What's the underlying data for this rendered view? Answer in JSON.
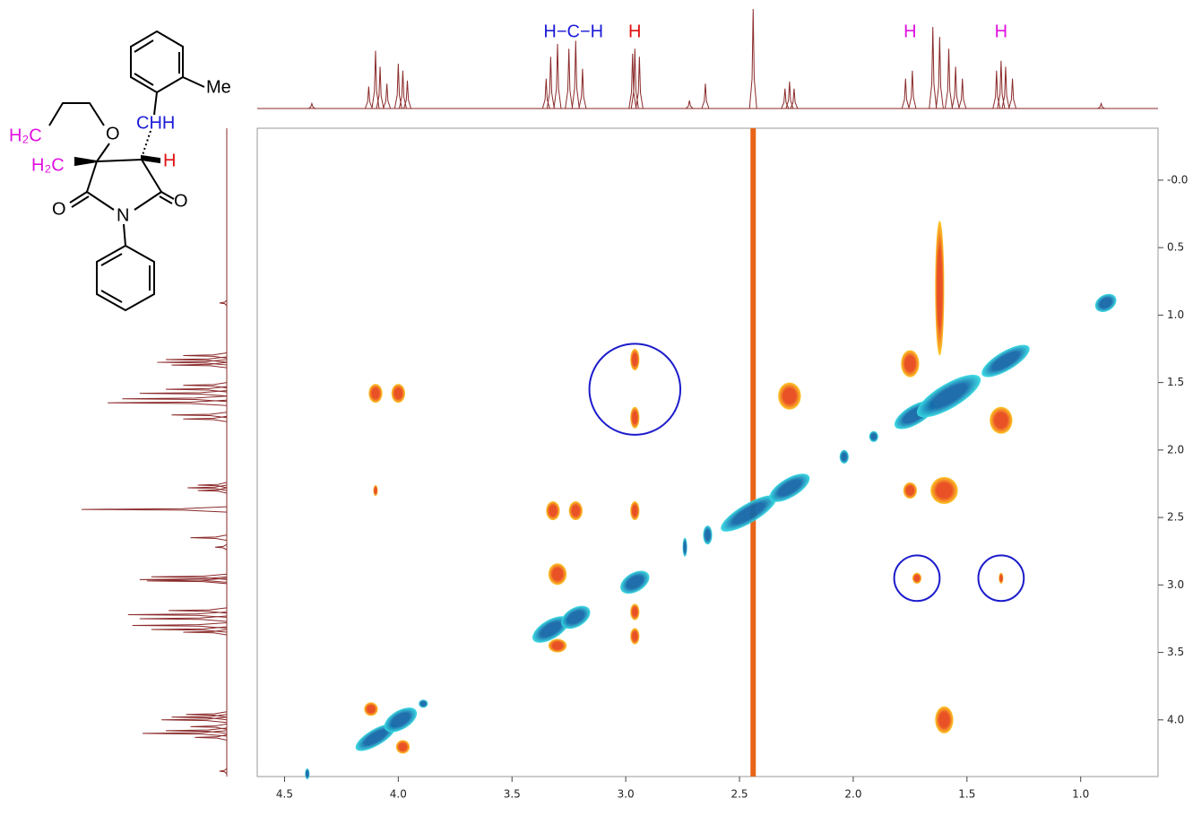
{
  "chart_data": {
    "type": "nmr2d",
    "xlim": [
      4.62,
      0.66
    ],
    "ylim": [
      -0.385,
      4.42
    ],
    "xticks": [
      4.5,
      {
        "value": 4,
        "label": "4.0"
      },
      3.5,
      {
        "value": 3,
        "label": "3.0"
      },
      2.5,
      {
        "value": 2,
        "label": "2.0"
      },
      1.5,
      {
        "value": 1,
        "label": "1.0"
      }
    ],
    "yticks": [
      {
        "value": 0,
        "label": "-0.0"
      },
      0.5,
      {
        "value": 1,
        "label": "1.0"
      },
      1.5,
      {
        "value": 2,
        "label": "2.0"
      },
      2.5,
      {
        "value": 3,
        "label": "3.0"
      },
      3.5,
      {
        "value": 4,
        "label": "4.0"
      }
    ],
    "colors": {
      "pos": [
        "#35dbe3",
        "#1467a8"
      ],
      "neg": [
        "#ffc61c",
        "#e8481a"
      ],
      "projection": "#8b2a2a",
      "highlight": "#1c1ccc"
    },
    "projection_lim": [
      0,
      100
    ],
    "projection": [
      {
        "ppm": 4.38,
        "h": 5
      },
      {
        "ppm": 4.13,
        "h": 22
      },
      {
        "ppm": 4.1,
        "h": 58
      },
      {
        "ppm": 4.08,
        "h": 42
      },
      {
        "ppm": 4.05,
        "h": 25
      },
      {
        "ppm": 4.0,
        "h": 45
      },
      {
        "ppm": 3.98,
        "h": 38
      },
      {
        "ppm": 3.96,
        "h": 28
      },
      {
        "ppm": 3.35,
        "h": 30
      },
      {
        "ppm": 3.33,
        "h": 52
      },
      {
        "ppm": 3.3,
        "h": 65
      },
      {
        "ppm": 3.25,
        "h": 60
      },
      {
        "ppm": 3.22,
        "h": 68
      },
      {
        "ppm": 3.19,
        "h": 40
      },
      {
        "ppm": 2.97,
        "h": 55
      },
      {
        "ppm": 2.96,
        "h": 60
      },
      {
        "ppm": 2.94,
        "h": 52
      },
      {
        "ppm": 2.72,
        "h": 8
      },
      {
        "ppm": 2.65,
        "h": 25
      },
      {
        "ppm": 2.44,
        "h": 100
      },
      {
        "ppm": 2.3,
        "h": 20
      },
      {
        "ppm": 2.28,
        "h": 27
      },
      {
        "ppm": 2.26,
        "h": 20
      },
      {
        "ppm": 1.77,
        "h": 30
      },
      {
        "ppm": 1.74,
        "h": 38
      },
      {
        "ppm": 1.65,
        "h": 82
      },
      {
        "ppm": 1.62,
        "h": 72
      },
      {
        "ppm": 1.58,
        "h": 60
      },
      {
        "ppm": 1.55,
        "h": 42
      },
      {
        "ppm": 1.52,
        "h": 30
      },
      {
        "ppm": 1.37,
        "h": 38
      },
      {
        "ppm": 1.35,
        "h": 48
      },
      {
        "ppm": 1.33,
        "h": 42
      },
      {
        "ppm": 1.3,
        "h": 30
      },
      {
        "ppm": 0.91,
        "h": 5
      }
    ],
    "artifact": {
      "x": 2.44,
      "color": "#e8641a"
    },
    "peaks": [
      {
        "x": 4.4,
        "y": 4.4,
        "wx": 0.01,
        "wy": 0.04,
        "phase": "pos"
      },
      {
        "x": 4.1,
        "y": 4.13,
        "wx": 0.1,
        "wy": 0.06,
        "phase": "pos"
      },
      {
        "x": 3.99,
        "y": 4.0,
        "wx": 0.08,
        "wy": 0.07,
        "phase": "pos"
      },
      {
        "x": 3.89,
        "y": 3.88,
        "wx": 0.02,
        "wy": 0.03,
        "phase": "pos"
      },
      {
        "x": 3.33,
        "y": 3.33,
        "wx": 0.09,
        "wy": 0.07,
        "phase": "pos"
      },
      {
        "x": 3.22,
        "y": 3.24,
        "wx": 0.07,
        "wy": 0.07,
        "phase": "pos"
      },
      {
        "x": 2.96,
        "y": 2.98,
        "wx": 0.07,
        "wy": 0.07,
        "phase": "pos"
      },
      {
        "x": 2.74,
        "y": 2.72,
        "wx": 0.01,
        "wy": 0.07,
        "phase": "pos"
      },
      {
        "x": 2.64,
        "y": 2.63,
        "wx": 0.02,
        "wy": 0.07,
        "phase": "pos"
      },
      {
        "x": 2.46,
        "y": 2.47,
        "wx": 0.14,
        "wy": 0.07,
        "phase": "pos"
      },
      {
        "x": 2.28,
        "y": 2.28,
        "wx": 0.1,
        "wy": 0.07,
        "phase": "pos"
      },
      {
        "x": 2.04,
        "y": 2.05,
        "wx": 0.02,
        "wy": 0.05,
        "phase": "pos"
      },
      {
        "x": 1.91,
        "y": 1.9,
        "wx": 0.02,
        "wy": 0.04,
        "phase": "pos"
      },
      {
        "x": 1.73,
        "y": 1.74,
        "wx": 0.1,
        "wy": 0.07,
        "phase": "pos"
      },
      {
        "x": 1.58,
        "y": 1.6,
        "wx": 0.16,
        "wy": 0.09,
        "phase": "pos"
      },
      {
        "x": 1.33,
        "y": 1.34,
        "wx": 0.12,
        "wy": 0.07,
        "phase": "pos"
      },
      {
        "x": 0.89,
        "y": 0.91,
        "wx": 0.05,
        "wy": 0.06,
        "phase": "pos"
      },
      {
        "x": 4.1,
        "y": 1.58,
        "wx": 0.03,
        "wy": 0.07,
        "phase": "neg"
      },
      {
        "x": 4.0,
        "y": 1.58,
        "wx": 0.03,
        "wy": 0.07,
        "phase": "neg"
      },
      {
        "x": 4.1,
        "y": 2.3,
        "wx": 0.01,
        "wy": 0.04,
        "phase": "neg"
      },
      {
        "x": 4.12,
        "y": 3.92,
        "wx": 0.03,
        "wy": 0.05,
        "phase": "neg"
      },
      {
        "x": 3.98,
        "y": 4.2,
        "wx": 0.03,
        "wy": 0.05,
        "phase": "neg"
      },
      {
        "x": 3.32,
        "y": 2.45,
        "wx": 0.03,
        "wy": 0.07,
        "phase": "neg"
      },
      {
        "x": 3.22,
        "y": 2.45,
        "wx": 0.03,
        "wy": 0.07,
        "phase": "neg"
      },
      {
        "x": 3.3,
        "y": 2.92,
        "wx": 0.04,
        "wy": 0.08,
        "phase": "neg"
      },
      {
        "x": 3.3,
        "y": 3.45,
        "wx": 0.04,
        "wy": 0.05,
        "phase": "neg"
      },
      {
        "x": 2.96,
        "y": 1.33,
        "wx": 0.02,
        "wy": 0.08,
        "phase": "neg"
      },
      {
        "x": 2.96,
        "y": 1.76,
        "wx": 0.02,
        "wy": 0.08,
        "phase": "neg"
      },
      {
        "x": 2.96,
        "y": 2.45,
        "wx": 0.02,
        "wy": 0.07,
        "phase": "neg"
      },
      {
        "x": 2.96,
        "y": 3.2,
        "wx": 0.02,
        "wy": 0.06,
        "phase": "neg"
      },
      {
        "x": 2.96,
        "y": 3.38,
        "wx": 0.02,
        "wy": 0.06,
        "phase": "neg"
      },
      {
        "x": 2.28,
        "y": 1.6,
        "wx": 0.05,
        "wy": 0.1,
        "phase": "neg"
      },
      {
        "x": 1.75,
        "y": 1.36,
        "wx": 0.04,
        "wy": 0.1,
        "phase": "neg"
      },
      {
        "x": 1.75,
        "y": 2.3,
        "wx": 0.03,
        "wy": 0.06,
        "phase": "neg"
      },
      {
        "x": 1.6,
        "y": 2.3,
        "wx": 0.06,
        "wy": 0.1,
        "phase": "neg"
      },
      {
        "x": 1.62,
        "y": 0.8,
        "wx": 0.02,
        "wy": 0.5,
        "phase": "neg"
      },
      {
        "x": 1.6,
        "y": 4.0,
        "wx": 0.04,
        "wy": 0.1,
        "phase": "neg"
      },
      {
        "x": 1.35,
        "y": 1.78,
        "wx": 0.05,
        "wy": 0.1,
        "phase": "neg"
      },
      {
        "x": 1.72,
        "y": 2.95,
        "wx": 0.02,
        "wy": 0.04,
        "phase": "neg"
      },
      {
        "x": 1.35,
        "y": 2.95,
        "wx": 0.01,
        "wy": 0.04,
        "phase": "neg"
      }
    ],
    "highlights": [
      {
        "x": 2.96,
        "y": 1.55,
        "r": 0.2
      },
      {
        "x": 1.72,
        "y": 2.95,
        "r": 0.1
      },
      {
        "x": 1.35,
        "y": 2.95,
        "r": 0.1
      }
    ],
    "annotations": [
      {
        "text": "H−C−H",
        "x": 3.23,
        "color": "#1c1cd8"
      },
      {
        "text": "H",
        "x": 2.96,
        "color": "#e01010"
      },
      {
        "text": "H",
        "x": 1.75,
        "color": "#e010e0"
      },
      {
        "text": "H",
        "x": 1.35,
        "color": "#e010e0"
      }
    ]
  },
  "structure": {
    "labels": [
      "Me",
      "CHH",
      "O",
      "H",
      "H₂C",
      "H₂C",
      "O",
      "N",
      "O"
    ]
  }
}
